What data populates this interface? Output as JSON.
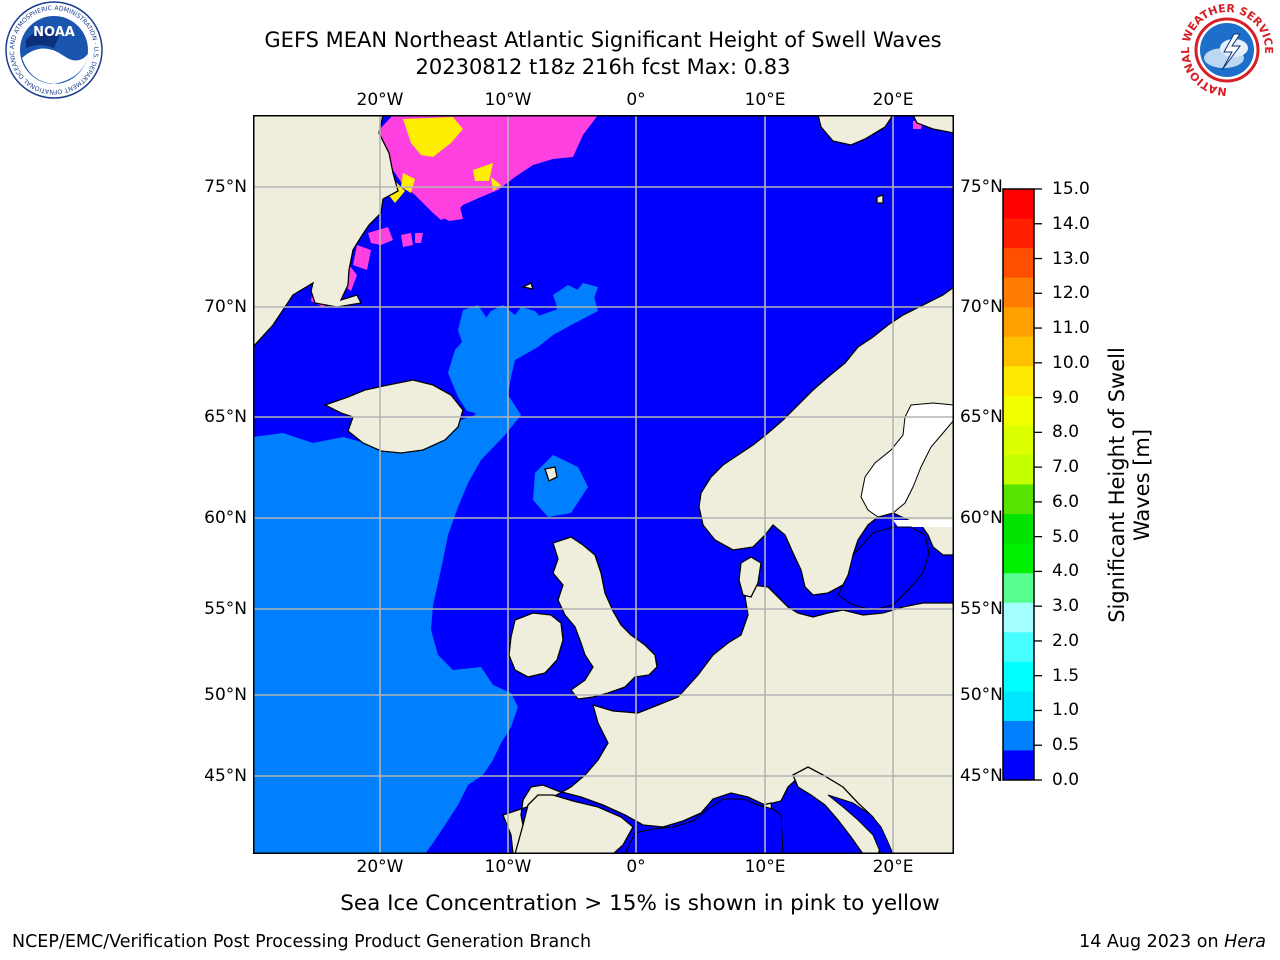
{
  "header": {
    "title_line1": "GEFS MEAN Northeast Atlantic Significant Height of Swell Waves",
    "title_line2": "20230812 t18z 216h fcst   Max: 0.83"
  },
  "map": {
    "lon_ticks": [
      "20°W",
      "10°W",
      "0°",
      "10°E",
      "20°E"
    ],
    "lat_ticks": [
      "75°N",
      "70°N",
      "65°N",
      "60°N",
      "55°N",
      "50°N",
      "45°N"
    ],
    "colors": {
      "land": "#efeedc",
      "ocean_low": "#0000fe",
      "ocean_mid": "#0080ff",
      "ice_pink": "#ff40e0",
      "ice_yellow": "#ffee00",
      "grid": "#b4b4b4"
    }
  },
  "colorbar": {
    "label_line1": "Significant Height of Swell",
    "label_line2": "Waves [m]",
    "ticks": [
      "15.0",
      "14.0",
      "13.0",
      "12.0",
      "11.0",
      "10.0",
      "9.0",
      "8.0",
      "7.0",
      "6.0",
      "5.0",
      "4.0",
      "3.0",
      "2.0",
      "1.5",
      "1.0",
      "0.5",
      "0.0"
    ],
    "colors_top_to_bottom": [
      "#ff0000",
      "#ff2000",
      "#ff5000",
      "#ff7c00",
      "#ffa000",
      "#ffc000",
      "#ffe800",
      "#f2ff00",
      "#dcff00",
      "#c4ff00",
      "#58e200",
      "#00e400",
      "#00f000",
      "#56ff90",
      "#a4ffff",
      "#48ffff",
      "#00ffff",
      "#00e8ff",
      "#0080ff",
      "#0000ff"
    ]
  },
  "note": "Sea Ice Concentration > 15% is shown in pink to yellow",
  "footer": {
    "left": "NCEP/EMC/Verification Post Processing Product Generation Branch",
    "right_date": "14 Aug 2023 on",
    "right_host": "Hera"
  },
  "logos": {
    "noaa_text": "NOAA",
    "noaa_ring": "NATIONAL OCEANIC AND ATMOSPHERIC ADMINISTRATION · U.S. DEPARTMENT OF COMMERCE",
    "nws_ring": "NATIONAL WEATHER SERVICE"
  }
}
